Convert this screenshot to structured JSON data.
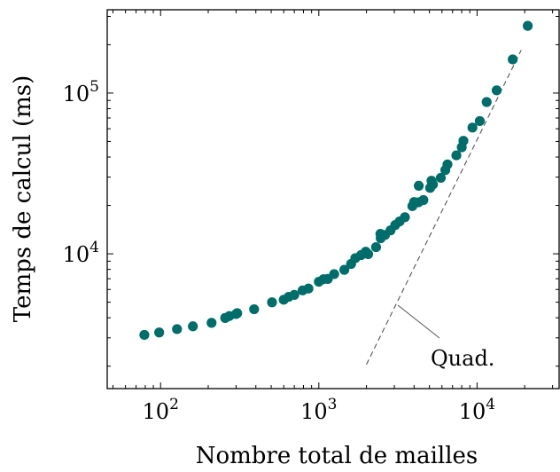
{
  "chart_data": {
    "type": "scatter",
    "title": "",
    "xlabel": "Nombre total de mailles",
    "ylabel": "Temps de calcul (ms)",
    "xscale": "log",
    "yscale": "log",
    "xlim": [
      46,
      33000
    ],
    "ylim": [
      1450,
      330000
    ],
    "grid": false,
    "x_ticks": [
      {
        "value": 100,
        "base": "10",
        "exp": "2"
      },
      {
        "value": 1000,
        "base": "10",
        "exp": "3"
      },
      {
        "value": 10000,
        "base": "10",
        "exp": "4"
      }
    ],
    "y_ticks": [
      {
        "value": 10000,
        "base": "10",
        "exp": "4"
      },
      {
        "value": 100000,
        "base": "10",
        "exp": "5"
      }
    ],
    "marker_color": "#006d6a",
    "series": [
      {
        "points": [
          [
            79,
            3130
          ],
          [
            98,
            3240
          ],
          [
            127,
            3400
          ],
          [
            160,
            3540
          ],
          [
            210,
            3720
          ],
          [
            256,
            3990
          ],
          [
            272,
            4100
          ],
          [
            300,
            4220
          ],
          [
            305,
            4270
          ],
          [
            390,
            4520
          ],
          [
            506,
            4990
          ],
          [
            600,
            5180
          ],
          [
            645,
            5400
          ],
          [
            700,
            5550
          ],
          [
            790,
            5920
          ],
          [
            860,
            6080
          ],
          [
            1000,
            6700
          ],
          [
            1070,
            6950
          ],
          [
            1140,
            6980
          ],
          [
            1250,
            7480
          ],
          [
            1450,
            7950
          ],
          [
            1600,
            8650
          ],
          [
            1700,
            9400
          ],
          [
            1850,
            9820
          ],
          [
            1980,
            10300
          ],
          [
            2050,
            9950
          ],
          [
            2300,
            11000
          ],
          [
            2460,
            12500
          ],
          [
            2450,
            13300
          ],
          [
            2620,
            13100
          ],
          [
            2840,
            14000
          ],
          [
            3040,
            15100
          ],
          [
            3240,
            15900
          ],
          [
            3500,
            16900
          ],
          [
            3900,
            19800
          ],
          [
            4000,
            21000
          ],
          [
            4260,
            20900
          ],
          [
            4280,
            26500
          ],
          [
            4580,
            21600
          ],
          [
            5050,
            25700
          ],
          [
            5150,
            28500
          ],
          [
            5260,
            27000
          ],
          [
            5900,
            29700
          ],
          [
            6300,
            33200
          ],
          [
            6500,
            36000
          ],
          [
            7400,
            41000
          ],
          [
            8000,
            46000
          ],
          [
            8200,
            50500
          ],
          [
            9350,
            61000
          ],
          [
            10400,
            67000
          ],
          [
            11500,
            88000
          ],
          [
            13300,
            104000
          ],
          [
            16800,
            162000
          ],
          [
            20900,
            262000
          ]
        ]
      }
    ],
    "reference_line": {
      "label": "Quad.",
      "x": [
        2000,
        19000
      ],
      "y": [
        2050,
        185000
      ]
    }
  }
}
